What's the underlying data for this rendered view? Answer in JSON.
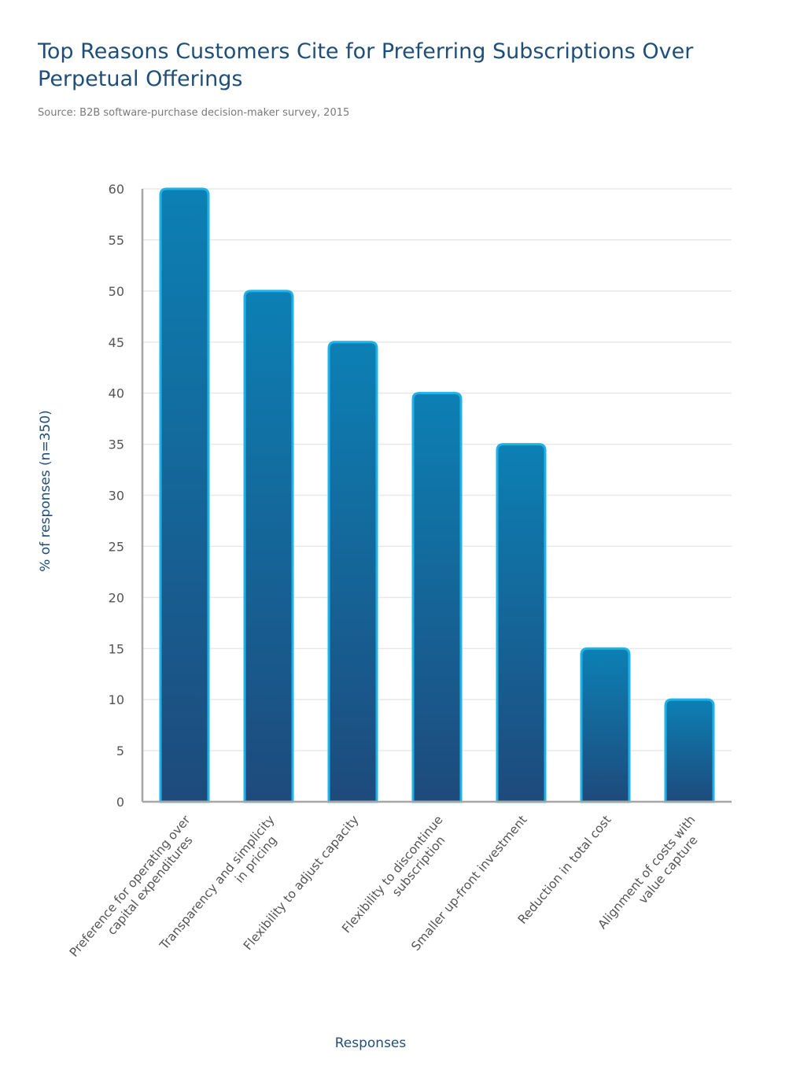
{
  "header": {
    "title": "Top Reasons Customers Cite for Preferring Subscriptions Over Perpetual Offerings",
    "subtitle": "Source: B2B software-purchase decision-maker survey, 2015"
  },
  "colors": {
    "bar_top": "#0c80b4",
    "bar_bottom": "#1e4a7c",
    "bar_outline": "#1eb2e8",
    "title": "#1f4e79"
  },
  "chart_data": {
    "type": "bar",
    "title": "Top Reasons Customers Cite for Preferring Subscriptions Over Perpetual Offerings",
    "xlabel": "Responses",
    "ylabel": "% of responses (n=350)",
    "ylim": [
      0,
      60
    ],
    "yticks": [
      0,
      5,
      10,
      15,
      20,
      25,
      30,
      35,
      40,
      45,
      50,
      55,
      60
    ],
    "grid": true,
    "legend": "none",
    "categories": [
      [
        "Preference for operating over",
        "capital expenditures"
      ],
      [
        "Transparency and simplicity",
        "in pricing"
      ],
      [
        "Flexibility to adjust capacity"
      ],
      [
        "Flexibility to discontinue",
        "subscription"
      ],
      [
        "Smaller up-front investment"
      ],
      [
        "Reduction in total cost"
      ],
      [
        "Alignment of costs with",
        "value capture"
      ]
    ],
    "values": [
      60,
      50,
      45,
      40,
      35,
      15,
      10
    ]
  }
}
